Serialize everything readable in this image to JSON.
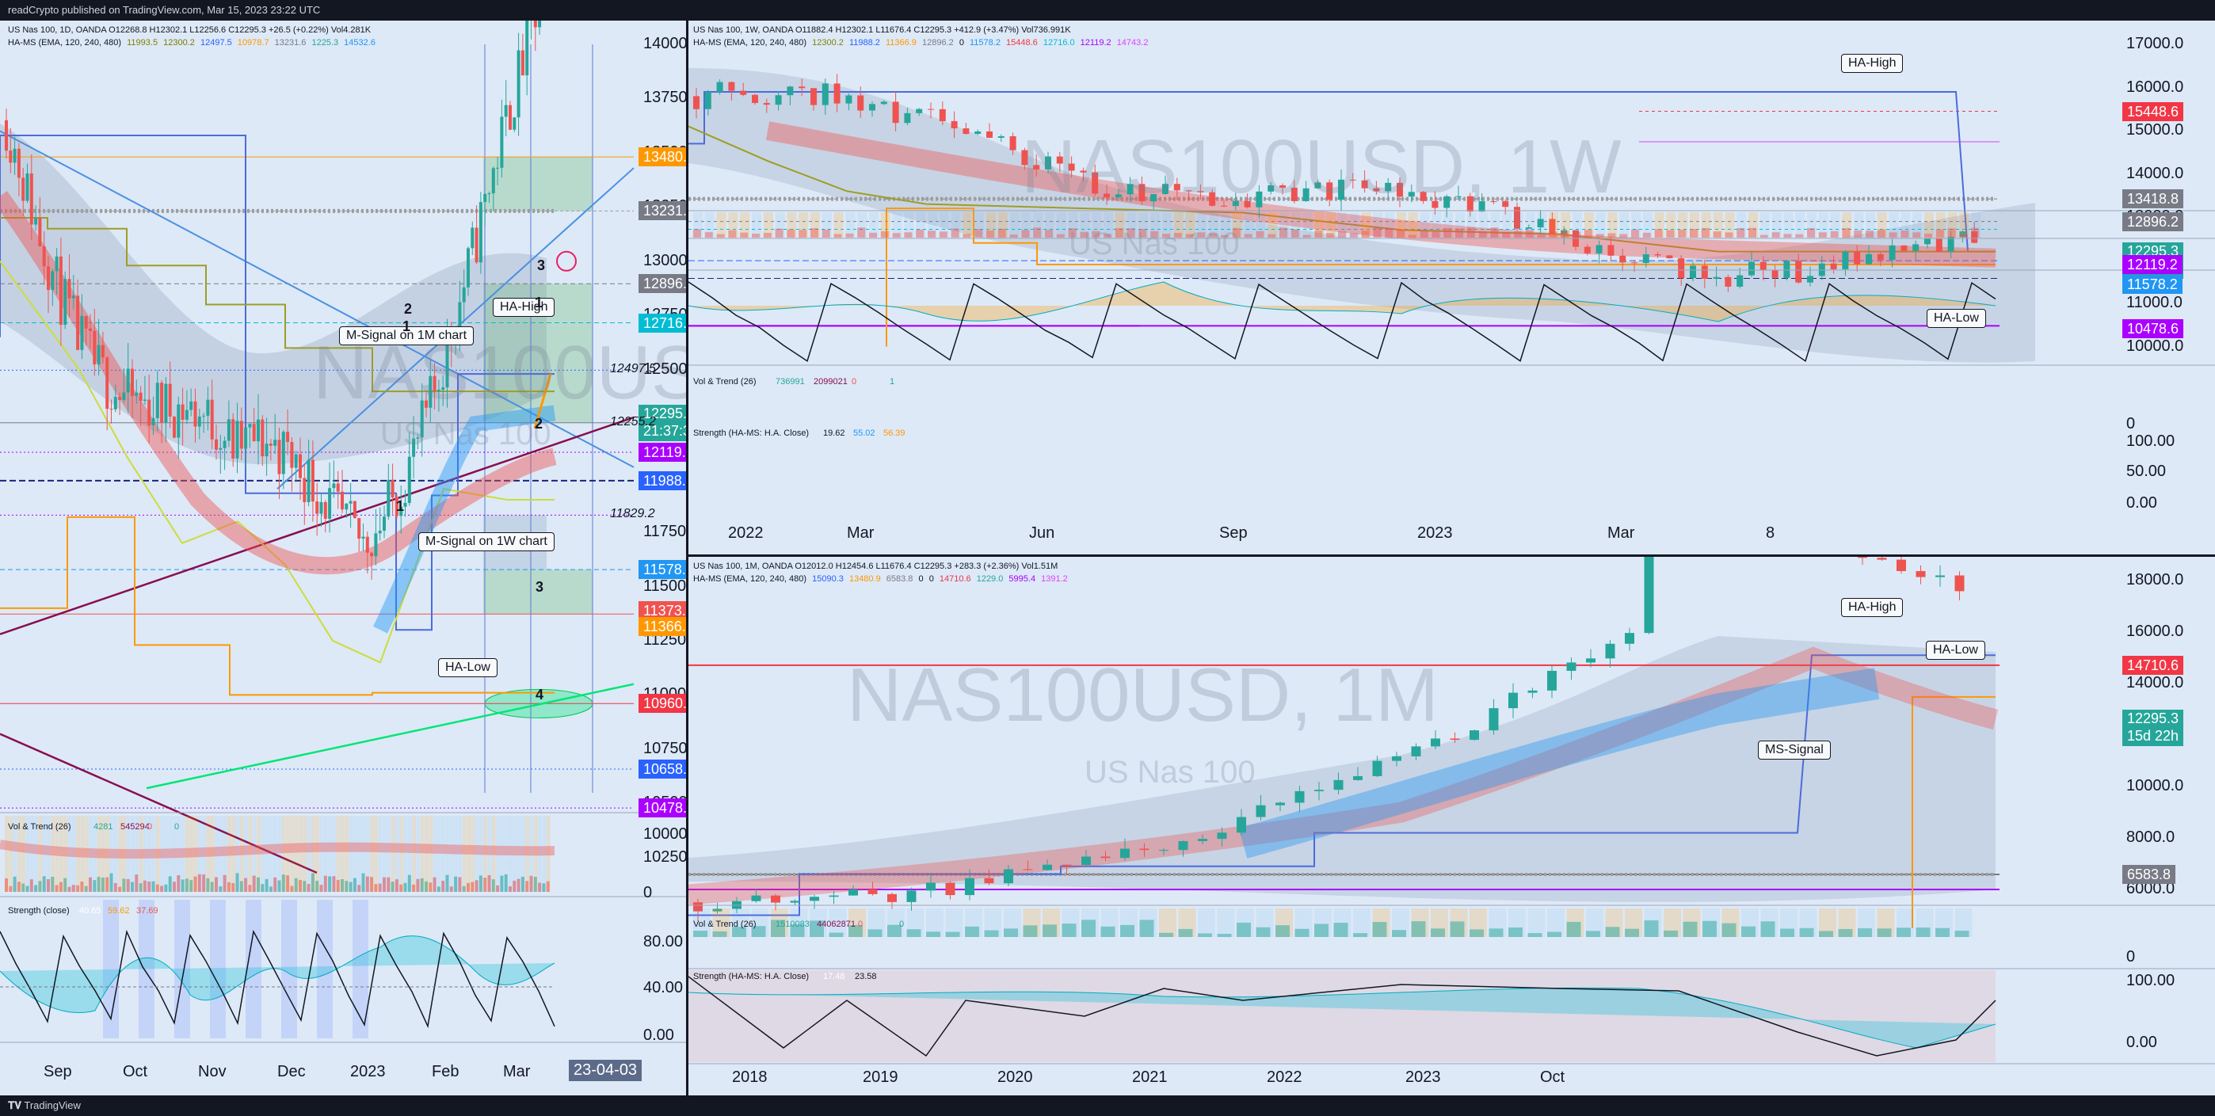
{
  "header": {
    "publisher_text": "readCrypto published on TradingView.com, Mar 15, 2023 23:22 UTC"
  },
  "footer": {
    "brand": "TradingView"
  },
  "colors": {
    "bg": "#dde9f7",
    "up": "#26a69a",
    "down": "#ef5350",
    "orange": "#ff9800",
    "blue": "#2962ff",
    "purple": "#9c27b0",
    "olive": "#808000",
    "green": "#00e676",
    "maroon": "#880e4f"
  },
  "left_panel": {
    "legend1": "US Nas 100, 1D, OANDA  O12268.8  H12302.1  L12256.6  C12295.3  +26.5 (+0.22%)  Vol4.281K",
    "legend2_prefix": "HA-MS (EMA, 120, 240, 480)",
    "legend2_values": [
      "11993.5",
      "12300.2",
      "12497.5",
      "10978.7",
      "13231.6",
      "1225.3",
      "14532.6"
    ],
    "watermark": "NAS100USD, 1D",
    "watermark_sub": "US Nas 100",
    "y_axis": [
      "14000.0",
      "13750.0",
      "13500.0",
      "13250.0",
      "13000.0",
      "12750.0",
      "12500.0",
      "12250.0",
      "12000.0",
      "11750.0",
      "11500.0",
      "11250.0",
      "11000.0",
      "10750.0",
      "10500.0",
      "10250.0"
    ],
    "price_tags": [
      {
        "label": "13480.9",
        "color": "#ff9800"
      },
      {
        "label": "13231.6",
        "color": "#787b86"
      },
      {
        "label": "12896.2",
        "color": "#787b86"
      },
      {
        "label": "12716.0",
        "color": "#00bcd4"
      },
      {
        "label": "12295.3",
        "color": "#26a69a",
        "sub": "21:37:33"
      },
      {
        "label": "12119.2",
        "color": "#aa00ff"
      },
      {
        "label": "11988.2",
        "color": "#2962ff"
      },
      {
        "label": "11578.2",
        "color": "#2196f3"
      },
      {
        "label": "11373.2",
        "color": "#ef5350"
      },
      {
        "label": "11366.9",
        "color": "#ff9800"
      },
      {
        "label": "10960.4",
        "color": "#f23645"
      },
      {
        "label": "10658.2",
        "color": "#2962ff"
      },
      {
        "label": "10478.6",
        "color": "#aa00ff"
      }
    ],
    "inline_levels": [
      "12497.5",
      "12255.2",
      "11829.2"
    ],
    "callouts": [
      "M-Signal on 1M chart",
      "HA-High",
      "M-Signal on 1W chart",
      "HA-Low"
    ],
    "numbers": [
      "1",
      "2",
      "3",
      "1",
      "2",
      "3",
      "4"
    ],
    "x_axis": [
      "Sep",
      "Oct",
      "Nov",
      "Dec",
      "2023",
      "Feb",
      "Mar",
      "23-04-03"
    ],
    "vol_legend": "Vol & Trend (26)",
    "vol_values": [
      "4281",
      "545294",
      "0",
      "0"
    ],
    "vol_axis": [
      "1000000",
      "0"
    ],
    "strength_legend": "Strength (close)",
    "strength_values": [
      "40.65",
      "59.62",
      "37.69"
    ],
    "strength_axis": [
      "80.00",
      "40.00",
      "0.00"
    ]
  },
  "right_top": {
    "legend1": "US Nas 100, 1W, OANDA  O11882.4  H12302.1  L11676.4  C12295.3  +412.9 (+3.47%)  Vol736.991K",
    "legend2_prefix": "HA-MS (EMA, 120, 240, 480)",
    "legend2_values": [
      "12300.2",
      "11988.2",
      "11366.9",
      "12896.2",
      "0",
      "11578.2",
      "15448.6",
      "12716.0",
      "12119.2",
      "14743.2"
    ],
    "watermark": "NAS100USD, 1W",
    "watermark_sub": "US Nas 100",
    "y_axis": [
      "17000.0",
      "16000.0",
      "15000.0",
      "14000.0",
      "13000.0",
      "12000.0",
      "11000.0",
      "10000.0"
    ],
    "price_tags": [
      {
        "label": "15448.6",
        "color": "#f23645"
      },
      {
        "label": "13418.8",
        "color": "#787b86"
      },
      {
        "label": "12896.2",
        "color": "#787b86"
      },
      {
        "label": "12295.3",
        "color": "#26a69a",
        "sub": "1d 22h"
      },
      {
        "label": "12119.2",
        "color": "#aa00ff"
      },
      {
        "label": "11578.2",
        "color": "#2196f3"
      },
      {
        "label": "10478.6",
        "color": "#aa00ff"
      }
    ],
    "callouts": [
      "HA-High",
      "HA-Low"
    ],
    "x_axis": [
      "2022",
      "Mar",
      "Jun",
      "Sep",
      "2023",
      "Mar",
      "8"
    ],
    "vol_legend": "Vol & Trend (26)",
    "vol_values": [
      "736991",
      "2099021",
      "0",
      "1"
    ],
    "vol_axis": [
      "0"
    ],
    "strength_legend": "Strength (HA-MS: H.A. Close)",
    "strength_values": [
      "19.62",
      "55.02",
      "56.39"
    ],
    "strength_axis": [
      "100.00",
      "50.00",
      "0.00"
    ]
  },
  "right_bottom": {
    "legend1": "US Nas 100, 1M, OANDA  O12012.0  H12454.6  L11676.4  C12295.3  +283.3 (+2.36%)  Vol1.51M",
    "legend2_prefix": "HA-MS (EMA, 120, 240, 480)",
    "legend2_values": [
      "15090.3",
      "13480.9",
      "6583.8",
      "0",
      "0",
      "14710.6",
      "1229.0",
      "5995.4",
      "1391.2"
    ],
    "watermark": "NAS100USD, 1M",
    "watermark_sub": "US Nas 100",
    "y_axis": [
      "18000.0",
      "16000.0",
      "14000.0",
      "12000.0",
      "10000.0",
      "8000.0",
      "6000.0"
    ],
    "price_tags": [
      {
        "label": "14710.6",
        "color": "#f23645"
      },
      {
        "label": "12295.3",
        "color": "#26a69a",
        "sub": "15d 22h"
      },
      {
        "label": "6583.8",
        "color": "#787b86"
      }
    ],
    "callouts": [
      "HA-High",
      "HA-Low",
      "MS-Signal"
    ],
    "x_axis": [
      "2018",
      "2019",
      "2020",
      "2021",
      "2022",
      "2023",
      "Oct"
    ],
    "vol_legend": "Vol & Trend (26)",
    "vol_values": [
      "1510083",
      "44062871",
      "0",
      "0"
    ],
    "vol_axis": [
      "0"
    ],
    "strength_legend": "Strength (HA-MS: H.A. Close)",
    "strength_values": [
      "17.48",
      "23.58"
    ],
    "strength_axis": [
      "100.00",
      "0.00"
    ]
  }
}
